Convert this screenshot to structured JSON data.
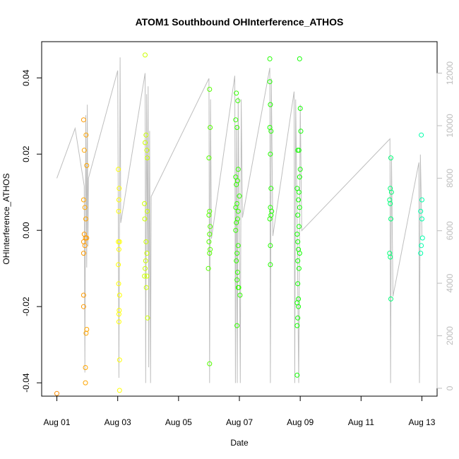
{
  "chart_data": {
    "type": "scatter",
    "title": "ATOM1 Southbound OHInterference_ATHOS",
    "xlabel": "Date",
    "ylabel": "OHInterference_ATHOS",
    "x_range_days": [
      -0.5,
      12.5
    ],
    "ylim_left": [
      -0.0435,
      0.0495
    ],
    "ylim_right": [
      -300,
      13200
    ],
    "x_ticks": [
      {
        "day": 0,
        "label": "Aug 01"
      },
      {
        "day": 2,
        "label": "Aug 03"
      },
      {
        "day": 4,
        "label": "Aug 05"
      },
      {
        "day": 6,
        "label": "Aug 07"
      },
      {
        "day": 8,
        "label": "Aug 09"
      },
      {
        "day": 10,
        "label": "Aug 11"
      },
      {
        "day": 12,
        "label": "Aug 13"
      }
    ],
    "y_ticks_left": [
      {
        "value": -0.04,
        "label": "-0.04"
      },
      {
        "value": -0.02,
        "label": "-0.02"
      },
      {
        "value": 0.0,
        "label": "0.00"
      },
      {
        "value": 0.02,
        "label": "0.02"
      },
      {
        "value": 0.04,
        "label": "0.04"
      }
    ],
    "y_ticks_right": [
      {
        "value": 0,
        "label": "0"
      },
      {
        "value": 2000,
        "label": "2000"
      },
      {
        "value": 4000,
        "label": "4000"
      },
      {
        "value": 6000,
        "label": "6000"
      },
      {
        "value": 8000,
        "label": "8000"
      },
      {
        "value": 10000,
        "label": "10000"
      },
      {
        "value": 12000,
        "label": "12000"
      }
    ],
    "line_series": {
      "color": "#bebebe",
      "points": [
        [
          0.0,
          8000
        ],
        [
          0.6,
          9900
        ],
        [
          0.9,
          7700
        ],
        [
          0.92,
          600
        ],
        [
          0.95,
          10400
        ],
        [
          0.98,
          4600
        ],
        [
          1.0,
          10800
        ],
        [
          1.02,
          5400
        ],
        [
          1.04,
          8000
        ],
        [
          2.0,
          12100
        ],
        [
          2.04,
          400
        ],
        [
          2.08,
          12600
        ],
        [
          2.1,
          6300
        ],
        [
          2.9,
          12000
        ],
        [
          2.92,
          200
        ],
        [
          2.95,
          11200
        ],
        [
          2.98,
          5200
        ],
        [
          3.0,
          11500
        ],
        [
          3.02,
          800
        ],
        [
          3.05,
          9800
        ],
        [
          3.08,
          200
        ],
        [
          3.1,
          7300
        ],
        [
          5.0,
          11800
        ],
        [
          5.02,
          200
        ],
        [
          5.05,
          11000
        ],
        [
          5.08,
          5700
        ],
        [
          5.85,
          11900
        ],
        [
          5.87,
          200
        ],
        [
          5.9,
          10000
        ],
        [
          5.93,
          200
        ],
        [
          5.96,
          11100
        ],
        [
          6.0,
          5200
        ],
        [
          6.03,
          200
        ],
        [
          6.06,
          11000
        ],
        [
          6.1,
          6500
        ],
        [
          7.0,
          12200
        ],
        [
          7.02,
          200
        ],
        [
          7.05,
          11800
        ],
        [
          7.1,
          5800
        ],
        [
          7.8,
          11300
        ],
        [
          7.82,
          200
        ],
        [
          7.85,
          11000
        ],
        [
          7.9,
          6200
        ],
        [
          7.95,
          200
        ],
        [
          8.0,
          10800
        ],
        [
          8.05,
          6000
        ],
        [
          10.95,
          9500
        ],
        [
          10.97,
          200
        ],
        [
          11.0,
          8800
        ],
        [
          11.05,
          3500
        ],
        [
          11.9,
          8600
        ],
        [
          11.92,
          200
        ],
        [
          11.95,
          8900
        ],
        [
          12.0,
          5800
        ]
      ]
    },
    "scatter_series": {
      "points": [
        {
          "x": 0.0,
          "y": -0.0428,
          "color": "#ff8c00"
        },
        {
          "x": 0.88,
          "y": 0.029,
          "color": "#ff9a00"
        },
        {
          "x": 0.96,
          "y": 0.025,
          "color": "#ffa500"
        },
        {
          "x": 0.9,
          "y": 0.021,
          "color": "#ffa500"
        },
        {
          "x": 0.98,
          "y": 0.017,
          "color": "#ffa500"
        },
        {
          "x": 0.88,
          "y": 0.008,
          "color": "#ffa500"
        },
        {
          "x": 0.92,
          "y": 0.006,
          "color": "#ffa500"
        },
        {
          "x": 0.95,
          "y": 0.003,
          "color": "#ffa500"
        },
        {
          "x": 0.9,
          "y": -0.001,
          "color": "#ff9a00"
        },
        {
          "x": 0.94,
          "y": -0.002,
          "color": "#ff9a00"
        },
        {
          "x": 0.98,
          "y": -0.002,
          "color": "#ff9a00"
        },
        {
          "x": 0.88,
          "y": -0.003,
          "color": "#ff9a00"
        },
        {
          "x": 0.92,
          "y": -0.004,
          "color": "#ff9a00"
        },
        {
          "x": 0.88,
          "y": -0.006,
          "color": "#ff9a00"
        },
        {
          "x": 0.88,
          "y": -0.017,
          "color": "#ff9a00"
        },
        {
          "x": 0.88,
          "y": -0.02,
          "color": "#ff9a00"
        },
        {
          "x": 0.98,
          "y": -0.026,
          "color": "#ffa500"
        },
        {
          "x": 0.96,
          "y": -0.027,
          "color": "#ffa500"
        },
        {
          "x": 0.94,
          "y": -0.036,
          "color": "#ffa500"
        },
        {
          "x": 0.94,
          "y": -0.04,
          "color": "#ffa500"
        },
        {
          "x": 2.02,
          "y": 0.016,
          "color": "#ffff00"
        },
        {
          "x": 2.05,
          "y": 0.011,
          "color": "#ffff00"
        },
        {
          "x": 2.04,
          "y": 0.008,
          "color": "#ffff00"
        },
        {
          "x": 2.03,
          "y": 0.005,
          "color": "#ffff00"
        },
        {
          "x": 2.02,
          "y": -0.003,
          "color": "#ffff00"
        },
        {
          "x": 2.06,
          "y": -0.003,
          "color": "#ffff00"
        },
        {
          "x": 2.04,
          "y": -0.005,
          "color": "#ffff00"
        },
        {
          "x": 2.02,
          "y": -0.009,
          "color": "#ffff00"
        },
        {
          "x": 2.03,
          "y": -0.014,
          "color": "#ffff00"
        },
        {
          "x": 2.06,
          "y": -0.017,
          "color": "#ffff00"
        },
        {
          "x": 2.05,
          "y": -0.021,
          "color": "#ffff00"
        },
        {
          "x": 2.04,
          "y": -0.022,
          "color": "#ffff00"
        },
        {
          "x": 2.04,
          "y": -0.024,
          "color": "#ffff00"
        },
        {
          "x": 2.06,
          "y": -0.034,
          "color": "#ffff00"
        },
        {
          "x": 2.06,
          "y": -0.042,
          "color": "#ffff00"
        },
        {
          "x": 2.9,
          "y": 0.046,
          "color": "#ccff00"
        },
        {
          "x": 2.93,
          "y": 0.025,
          "color": "#ccff00"
        },
        {
          "x": 2.9,
          "y": 0.023,
          "color": "#ccff00"
        },
        {
          "x": 2.96,
          "y": 0.021,
          "color": "#ccff00"
        },
        {
          "x": 2.97,
          "y": 0.019,
          "color": "#ccff00"
        },
        {
          "x": 2.88,
          "y": 0.007,
          "color": "#ccff00"
        },
        {
          "x": 2.97,
          "y": 0.005,
          "color": "#ccff00"
        },
        {
          "x": 2.89,
          "y": 0.003,
          "color": "#ccff00"
        },
        {
          "x": 2.93,
          "y": -0.003,
          "color": "#ccff00"
        },
        {
          "x": 2.96,
          "y": -0.006,
          "color": "#ccff00"
        },
        {
          "x": 2.92,
          "y": -0.008,
          "color": "#ccff00"
        },
        {
          "x": 2.9,
          "y": -0.01,
          "color": "#ccff00"
        },
        {
          "x": 2.88,
          "y": -0.012,
          "color": "#ccff00"
        },
        {
          "x": 2.96,
          "y": -0.012,
          "color": "#ccff00"
        },
        {
          "x": 2.94,
          "y": -0.015,
          "color": "#ccff00"
        },
        {
          "x": 2.98,
          "y": -0.023,
          "color": "#ccff00"
        },
        {
          "x": 5.02,
          "y": 0.037,
          "color": "#55ff00"
        },
        {
          "x": 5.04,
          "y": 0.027,
          "color": "#55ff00"
        },
        {
          "x": 5.0,
          "y": 0.019,
          "color": "#55ff00"
        },
        {
          "x": 5.02,
          "y": 0.005,
          "color": "#55ff00"
        },
        {
          "x": 5.0,
          "y": 0.004,
          "color": "#55ff00"
        },
        {
          "x": 5.04,
          "y": 0.001,
          "color": "#55ff00"
        },
        {
          "x": 5.02,
          "y": -0.001,
          "color": "#55ff00"
        },
        {
          "x": 5.0,
          "y": -0.003,
          "color": "#55ff00"
        },
        {
          "x": 5.04,
          "y": -0.005,
          "color": "#55ff00"
        },
        {
          "x": 5.02,
          "y": -0.006,
          "color": "#55ff00"
        },
        {
          "x": 4.98,
          "y": -0.01,
          "color": "#55ff00"
        },
        {
          "x": 5.02,
          "y": -0.035,
          "color": "#55ff00"
        },
        {
          "x": 5.9,
          "y": 0.036,
          "color": "#33ff00"
        },
        {
          "x": 5.95,
          "y": 0.034,
          "color": "#33ff00"
        },
        {
          "x": 5.88,
          "y": 0.029,
          "color": "#33ff00"
        },
        {
          "x": 5.92,
          "y": 0.027,
          "color": "#33ff00"
        },
        {
          "x": 5.96,
          "y": 0.016,
          "color": "#33ff00"
        },
        {
          "x": 5.88,
          "y": 0.014,
          "color": "#33ff00"
        },
        {
          "x": 5.94,
          "y": 0.013,
          "color": "#33ff00"
        },
        {
          "x": 5.9,
          "y": 0.012,
          "color": "#33ff00"
        },
        {
          "x": 6.0,
          "y": 0.009,
          "color": "#33ff00"
        },
        {
          "x": 5.92,
          "y": 0.007,
          "color": "#33ff00"
        },
        {
          "x": 5.88,
          "y": 0.006,
          "color": "#33ff00"
        },
        {
          "x": 5.96,
          "y": 0.005,
          "color": "#33ff00"
        },
        {
          "x": 5.94,
          "y": 0.003,
          "color": "#33ff00"
        },
        {
          "x": 5.9,
          "y": 0.002,
          "color": "#33ff00"
        },
        {
          "x": 5.88,
          "y": 0.0,
          "color": "#33ff00"
        },
        {
          "x": 5.96,
          "y": -0.004,
          "color": "#33ff00"
        },
        {
          "x": 5.92,
          "y": -0.006,
          "color": "#33ff00"
        },
        {
          "x": 5.9,
          "y": -0.008,
          "color": "#33ff00"
        },
        {
          "x": 5.94,
          "y": -0.011,
          "color": "#33ff00"
        },
        {
          "x": 5.92,
          "y": -0.013,
          "color": "#33ff00"
        },
        {
          "x": 5.96,
          "y": -0.015,
          "color": "#33ff00"
        },
        {
          "x": 5.98,
          "y": -0.015,
          "color": "#33ff00"
        },
        {
          "x": 6.02,
          "y": -0.017,
          "color": "#33ff00"
        },
        {
          "x": 5.92,
          "y": -0.025,
          "color": "#33ff00"
        },
        {
          "x": 7.0,
          "y": 0.045,
          "color": "#22ff00"
        },
        {
          "x": 7.0,
          "y": 0.039,
          "color": "#22ff00"
        },
        {
          "x": 7.02,
          "y": 0.033,
          "color": "#22ff00"
        },
        {
          "x": 7.0,
          "y": 0.027,
          "color": "#22ff00"
        },
        {
          "x": 7.04,
          "y": 0.026,
          "color": "#22ff00"
        },
        {
          "x": 7.02,
          "y": 0.02,
          "color": "#22ff00"
        },
        {
          "x": 7.04,
          "y": 0.011,
          "color": "#22ff00"
        },
        {
          "x": 7.02,
          "y": 0.006,
          "color": "#22ff00"
        },
        {
          "x": 7.06,
          "y": 0.005,
          "color": "#22ff00"
        },
        {
          "x": 7.04,
          "y": 0.004,
          "color": "#22ff00"
        },
        {
          "x": 7.0,
          "y": 0.003,
          "color": "#22ff00"
        },
        {
          "x": 7.02,
          "y": -0.004,
          "color": "#22ff00"
        },
        {
          "x": 7.02,
          "y": -0.009,
          "color": "#22ff00"
        },
        {
          "x": 7.98,
          "y": 0.045,
          "color": "#11ff00"
        },
        {
          "x": 8.0,
          "y": 0.032,
          "color": "#11ff00"
        },
        {
          "x": 8.02,
          "y": 0.026,
          "color": "#11ff00"
        },
        {
          "x": 7.96,
          "y": 0.021,
          "color": "#11ff00"
        },
        {
          "x": 7.92,
          "y": 0.021,
          "color": "#11ff00"
        },
        {
          "x": 8.0,
          "y": 0.016,
          "color": "#11ff00"
        },
        {
          "x": 7.98,
          "y": 0.014,
          "color": "#11ff00"
        },
        {
          "x": 7.9,
          "y": 0.011,
          "color": "#11ff00"
        },
        {
          "x": 7.96,
          "y": 0.01,
          "color": "#11ff00"
        },
        {
          "x": 7.94,
          "y": 0.008,
          "color": "#11ff00"
        },
        {
          "x": 7.98,
          "y": 0.006,
          "color": "#11ff00"
        },
        {
          "x": 7.92,
          "y": 0.004,
          "color": "#11ff00"
        },
        {
          "x": 7.96,
          "y": 0.001,
          "color": "#11ff00"
        },
        {
          "x": 7.9,
          "y": -0.001,
          "color": "#11ff00"
        },
        {
          "x": 7.92,
          "y": -0.003,
          "color": "#11ff00"
        },
        {
          "x": 7.94,
          "y": -0.005,
          "color": "#11ff00"
        },
        {
          "x": 7.98,
          "y": -0.006,
          "color": "#11ff00"
        },
        {
          "x": 7.92,
          "y": -0.008,
          "color": "#11ff00"
        },
        {
          "x": 7.96,
          "y": -0.01,
          "color": "#11ff00"
        },
        {
          "x": 7.92,
          "y": -0.014,
          "color": "#11ff00"
        },
        {
          "x": 7.94,
          "y": -0.018,
          "color": "#11ff00"
        },
        {
          "x": 7.9,
          "y": -0.019,
          "color": "#11ff00"
        },
        {
          "x": 7.94,
          "y": -0.02,
          "color": "#11ff00"
        },
        {
          "x": 7.92,
          "y": -0.023,
          "color": "#11ff00"
        },
        {
          "x": 7.9,
          "y": -0.025,
          "color": "#11ff00"
        },
        {
          "x": 7.9,
          "y": -0.038,
          "color": "#11ff00"
        },
        {
          "x": 10.98,
          "y": 0.019,
          "color": "#00ff77"
        },
        {
          "x": 10.96,
          "y": 0.011,
          "color": "#00ff77"
        },
        {
          "x": 11.0,
          "y": 0.01,
          "color": "#00ff77"
        },
        {
          "x": 10.94,
          "y": 0.008,
          "color": "#00ff77"
        },
        {
          "x": 10.96,
          "y": 0.007,
          "color": "#00ff77"
        },
        {
          "x": 10.98,
          "y": 0.003,
          "color": "#00ff77"
        },
        {
          "x": 10.94,
          "y": -0.006,
          "color": "#00ff77"
        },
        {
          "x": 10.96,
          "y": -0.007,
          "color": "#00ff77"
        },
        {
          "x": 10.98,
          "y": -0.018,
          "color": "#00ff77"
        },
        {
          "x": 11.98,
          "y": 0.025,
          "color": "#00ffaa"
        },
        {
          "x": 12.0,
          "y": 0.008,
          "color": "#00ffaa"
        },
        {
          "x": 11.96,
          "y": 0.005,
          "color": "#00ffaa"
        },
        {
          "x": 12.0,
          "y": 0.003,
          "color": "#00ffaa"
        },
        {
          "x": 12.02,
          "y": -0.002,
          "color": "#00ffaa"
        },
        {
          "x": 11.98,
          "y": -0.004,
          "color": "#00ffaa"
        },
        {
          "x": 11.96,
          "y": -0.006,
          "color": "#00ffaa"
        }
      ]
    }
  }
}
